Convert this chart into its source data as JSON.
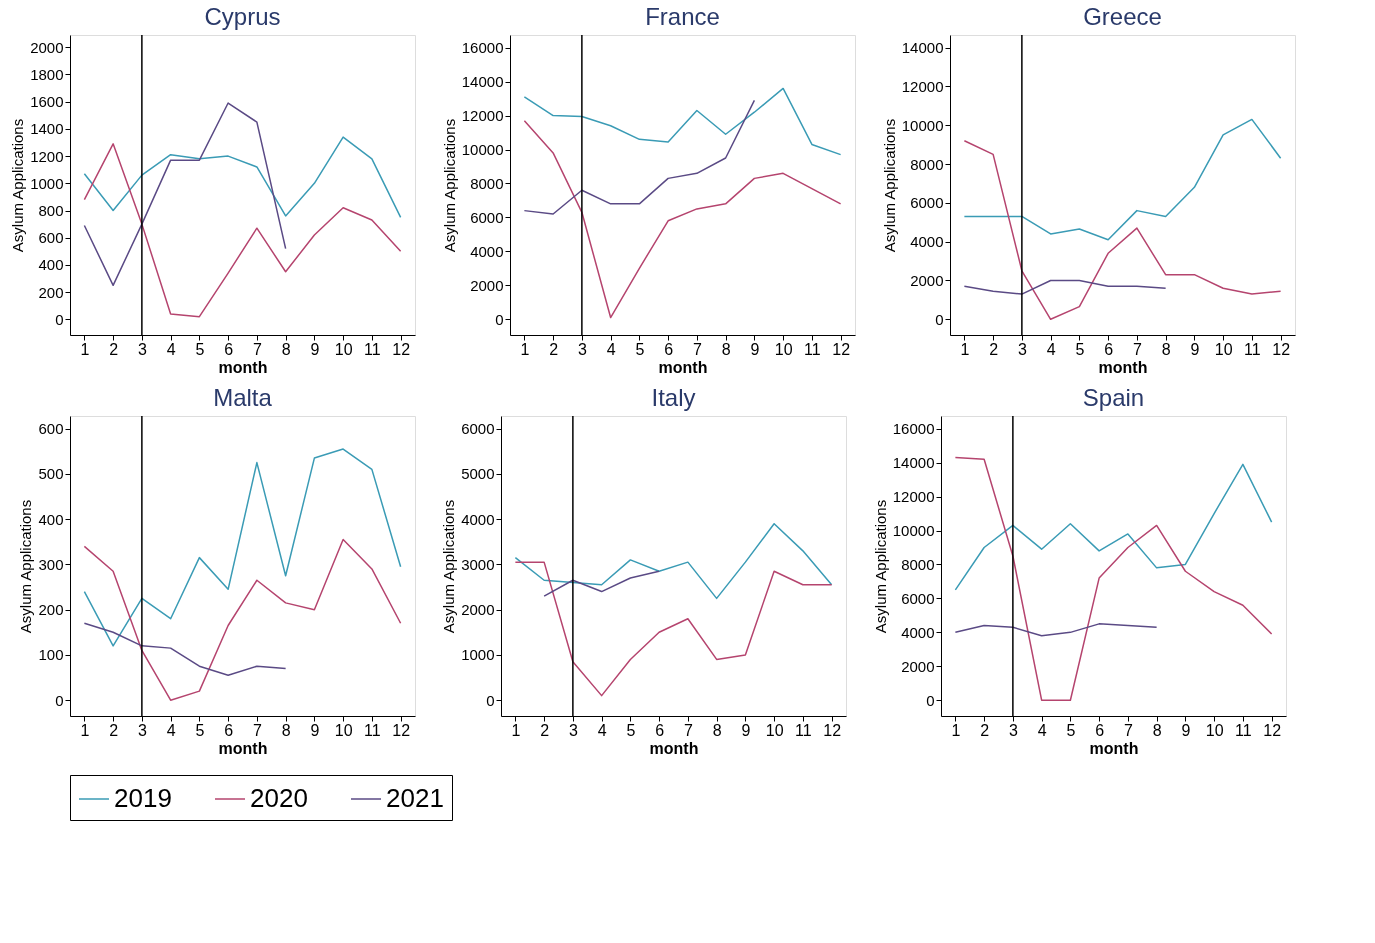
{
  "chart_data": [
    {
      "type": "line",
      "title": "Cyprus",
      "xlabel": "month",
      "ylabel": "Asylum Applications",
      "x": [
        1,
        2,
        3,
        4,
        5,
        6,
        7,
        8,
        9,
        10,
        11,
        12
      ],
      "xlim": [
        0.5,
        12.5
      ],
      "xticks": [
        1,
        2,
        3,
        4,
        5,
        6,
        7,
        8,
        9,
        10,
        11,
        12
      ],
      "ylim": [
        -115,
        2090
      ],
      "yticks": [
        0,
        200,
        400,
        600,
        800,
        1000,
        1200,
        1400,
        1600,
        1800,
        2000
      ],
      "grid": false,
      "legend": "bottom",
      "line_style": "solid",
      "ref_lines": [
        {
          "axis": "x",
          "value": 3,
          "color": "#000000"
        }
      ],
      "series": [
        {
          "name": "2019",
          "color": "#3a9bb5",
          "values": [
            1070,
            800,
            1060,
            1210,
            1180,
            1200,
            1120,
            760,
            1000,
            1340,
            1180,
            750
          ]
        },
        {
          "name": "2020",
          "color": "#b5446e",
          "values": [
            880,
            1290,
            700,
            40,
            20,
            340,
            670,
            350,
            620,
            820,
            730,
            500
          ]
        },
        {
          "name": "2021",
          "color": "#5a4a85",
          "values": [
            690,
            250,
            700,
            1170,
            1170,
            1590,
            1450,
            520,
            null,
            null,
            null,
            null
          ]
        }
      ]
    },
    {
      "type": "line",
      "title": "France",
      "xlabel": "month",
      "ylabel": "Asylum Applications",
      "x": [
        1,
        2,
        3,
        4,
        5,
        6,
        7,
        8,
        9,
        10,
        11,
        12
      ],
      "xlim": [
        0.5,
        12.5
      ],
      "xticks": [
        1,
        2,
        3,
        4,
        5,
        6,
        7,
        8,
        9,
        10,
        11,
        12
      ],
      "ylim": [
        -930,
        16750
      ],
      "yticks": [
        0,
        2000,
        4000,
        6000,
        8000,
        10000,
        12000,
        14000,
        16000
      ],
      "grid": false,
      "legend": "bottom",
      "line_style": "solid",
      "ref_lines": [
        {
          "axis": "x",
          "value": 3,
          "color": "#000000"
        }
      ],
      "series": [
        {
          "name": "2019",
          "color": "#3a9bb5",
          "values": [
            13100,
            12000,
            11950,
            11400,
            10600,
            10450,
            12300,
            10900,
            12200,
            13600,
            10300,
            9700
          ]
        },
        {
          "name": "2020",
          "color": "#b5446e",
          "values": [
            11700,
            9800,
            6300,
            100,
            3000,
            5800,
            6500,
            6800,
            8300,
            8600,
            7700,
            6800
          ]
        },
        {
          "name": "2021",
          "color": "#5a4a85",
          "values": [
            6400,
            6200,
            7600,
            6800,
            6800,
            8300,
            8600,
            9500,
            12900,
            null,
            null,
            null
          ]
        }
      ]
    },
    {
      "type": "line",
      "title": "Greece",
      "xlabel": "month",
      "ylabel": "Asylum Applications",
      "x": [
        1,
        2,
        3,
        4,
        5,
        6,
        7,
        8,
        9,
        10,
        11,
        12
      ],
      "xlim": [
        0.5,
        12.5
      ],
      "xticks": [
        1,
        2,
        3,
        4,
        5,
        6,
        7,
        8,
        9,
        10,
        11,
        12
      ],
      "ylim": [
        -810,
        14650
      ],
      "yticks": [
        0,
        2000,
        4000,
        6000,
        8000,
        10000,
        12000,
        14000
      ],
      "grid": false,
      "legend": "bottom",
      "line_style": "solid",
      "ref_lines": [
        {
          "axis": "x",
          "value": 3,
          "color": "#000000"
        }
      ],
      "series": [
        {
          "name": "2019",
          "color": "#3a9bb5",
          "values": [
            5300,
            5300,
            5300,
            4400,
            4650,
            4100,
            5600,
            5300,
            6800,
            9500,
            10300,
            8300
          ]
        },
        {
          "name": "2020",
          "color": "#b5446e",
          "values": [
            9200,
            8500,
            2500,
            0,
            650,
            3400,
            4700,
            2300,
            2300,
            1600,
            1300,
            1450
          ]
        },
        {
          "name": "2021",
          "color": "#5a4a85",
          "values": [
            1700,
            1450,
            1300,
            2000,
            2000,
            1700,
            1700,
            1600,
            null,
            null,
            null,
            null
          ]
        }
      ]
    },
    {
      "type": "line",
      "title": "Malta",
      "xlabel": "month",
      "ylabel": "Asylum Applications",
      "x": [
        1,
        2,
        3,
        4,
        5,
        6,
        7,
        8,
        9,
        10,
        11,
        12
      ],
      "xlim": [
        0.5,
        12.5
      ],
      "xticks": [
        1,
        2,
        3,
        4,
        5,
        6,
        7,
        8,
        9,
        10,
        11,
        12
      ],
      "ylim": [
        -35,
        628
      ],
      "yticks": [
        0,
        100,
        200,
        300,
        400,
        500,
        600
      ],
      "grid": false,
      "legend": "bottom",
      "line_style": "solid",
      "ref_lines": [
        {
          "axis": "x",
          "value": 3,
          "color": "#000000"
        }
      ],
      "series": [
        {
          "name": "2019",
          "color": "#3a9bb5",
          "values": [
            240,
            120,
            225,
            180,
            315,
            245,
            525,
            275,
            535,
            555,
            510,
            295
          ]
        },
        {
          "name": "2020",
          "color": "#b5446e",
          "values": [
            340,
            285,
            110,
            0,
            20,
            165,
            265,
            215,
            200,
            355,
            290,
            170
          ]
        },
        {
          "name": "2021",
          "color": "#5a4a85",
          "values": [
            170,
            150,
            120,
            115,
            75,
            55,
            75,
            70,
            null,
            null,
            null,
            null
          ]
        }
      ]
    },
    {
      "type": "line",
      "title": "Italy",
      "xlabel": "month",
      "ylabel": "Asylum Applications",
      "x": [
        1,
        2,
        3,
        4,
        5,
        6,
        7,
        8,
        9,
        10,
        11,
        12
      ],
      "xlim": [
        0.5,
        12.5
      ],
      "xticks": [
        1,
        2,
        3,
        4,
        5,
        6,
        7,
        8,
        9,
        10,
        11,
        12
      ],
      "ylim": [
        -350,
        6280
      ],
      "yticks": [
        0,
        1000,
        2000,
        3000,
        4000,
        5000,
        6000
      ],
      "grid": false,
      "legend": "bottom",
      "line_style": "solid",
      "ref_lines": [
        {
          "axis": "x",
          "value": 3,
          "color": "#000000"
        }
      ],
      "series": [
        {
          "name": "2019",
          "color": "#3a9bb5",
          "values": [
            3150,
            2650,
            2600,
            2550,
            3100,
            2850,
            3050,
            2250,
            3050,
            3900,
            3300,
            2550
          ]
        },
        {
          "name": "2020",
          "color": "#b5446e",
          "values": [
            3050,
            3050,
            850,
            100,
            900,
            1500,
            1800,
            900,
            1000,
            2850,
            2550,
            2550
          ]
        },
        {
          "name": "2021",
          "color": "#5a4a85",
          "values": [
            null,
            2300,
            2650,
            2400,
            2700,
            2850,
            null,
            null,
            null,
            null,
            null,
            null
          ]
        }
      ]
    },
    {
      "type": "line",
      "title": "Spain",
      "xlabel": "month",
      "ylabel": "Asylum Applications",
      "x": [
        1,
        2,
        3,
        4,
        5,
        6,
        7,
        8,
        9,
        10,
        11,
        12
      ],
      "xlim": [
        0.5,
        12.5
      ],
      "xticks": [
        1,
        2,
        3,
        4,
        5,
        6,
        7,
        8,
        9,
        10,
        11,
        12
      ],
      "ylim": [
        -930,
        16750
      ],
      "yticks": [
        0,
        2000,
        4000,
        6000,
        8000,
        10000,
        12000,
        14000,
        16000
      ],
      "grid": false,
      "legend": "bottom",
      "line_style": "solid",
      "ref_lines": [
        {
          "axis": "x",
          "value": 3,
          "color": "#000000"
        }
      ],
      "series": [
        {
          "name": "2019",
          "color": "#3a9bb5",
          "values": [
            6500,
            9000,
            10300,
            8900,
            10400,
            8800,
            9800,
            7800,
            8000,
            11000,
            13900,
            10500
          ]
        },
        {
          "name": "2020",
          "color": "#b5446e",
          "values": [
            14300,
            14200,
            8500,
            0,
            0,
            7200,
            9000,
            10300,
            7600,
            6400,
            5600,
            3900
          ]
        },
        {
          "name": "2021",
          "color": "#5a4a85",
          "values": [
            4000,
            4400,
            4300,
            3800,
            4000,
            4500,
            4400,
            4300,
            null,
            null,
            null,
            null
          ]
        }
      ]
    }
  ]
}
